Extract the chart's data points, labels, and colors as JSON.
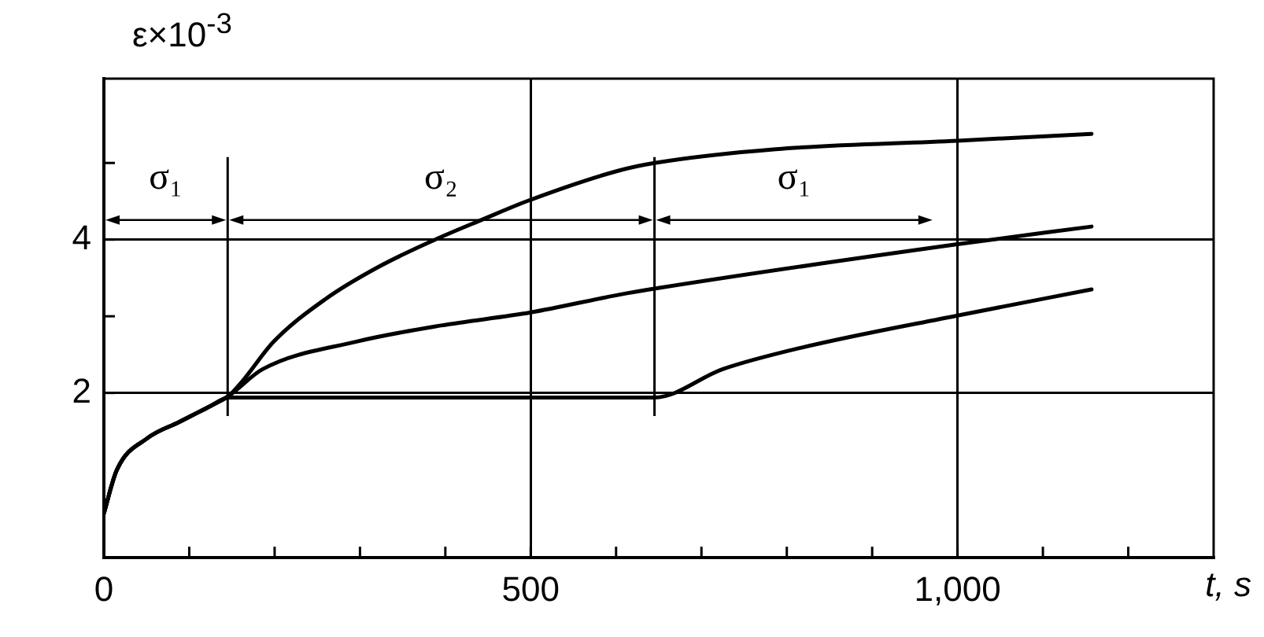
{
  "chart_data": {
    "type": "line",
    "ylabel": "ε×10$^{-3}$",
    "xlabel": "t, s",
    "xlim": [
      0,
      1300
    ],
    "ylim": [
      -0.15,
      6.1
    ],
    "xticks": [
      0,
      {
        "value": 100,
        "label": null
      },
      {
        "value": 200,
        "label": null
      },
      {
        "value": 300,
        "label": null
      },
      {
        "value": 400,
        "label": null
      },
      500,
      {
        "value": 600,
        "label": null
      },
      {
        "value": 700,
        "label": null
      },
      {
        "value": 800,
        "label": null
      },
      {
        "value": 900,
        "label": null
      },
      {
        "value": 1000,
        "label": "1,000"
      },
      {
        "value": 1100,
        "label": null
      },
      {
        "value": 1200,
        "label": null
      }
    ],
    "yticks": [
      2,
      {
        "value": 3,
        "label": null
      },
      4,
      {
        "value": 5,
        "label": null
      }
    ],
    "grid": true,
    "marker": "none",
    "line_style": "solid",
    "series": [
      {
        "color": "#000000",
        "x": [
          0,
          15,
          51,
          88,
          125,
          146,
          162,
          199,
          259,
          321,
          386,
          443,
          500,
          603,
          645,
          787,
          1000,
          1157
        ],
        "values": [
          0.43,
          0.99,
          1.41,
          1.62,
          1.83,
          1.96,
          2.15,
          2.67,
          3.22,
          3.64,
          3.99,
          4.26,
          4.52,
          4.9,
          5.0,
          5.18,
          5.29,
          5.38
        ]
      },
      {
        "color": "#000000",
        "x": [
          0,
          15,
          51,
          88,
          125,
          146,
          186,
          296,
          395,
          500,
          603,
          645,
          1000,
          1157
        ],
        "values": [
          0.43,
          0.99,
          1.41,
          1.62,
          1.83,
          1.96,
          2.31,
          2.67,
          2.88,
          3.05,
          3.28,
          3.36,
          3.94,
          4.17
        ]
      },
      {
        "color": "#000000",
        "x": [
          0,
          15,
          51,
          88,
          125,
          146,
          645,
          725,
          817,
          1000,
          1157
        ],
        "values": [
          0.43,
          0.99,
          1.41,
          1.62,
          1.83,
          1.94,
          1.94,
          2.31,
          2.59,
          3.01,
          3.35
        ]
      }
    ],
    "ref_lines": [
      {
        "axis": "x",
        "value": 145
      },
      {
        "axis": "x",
        "value": 645
      }
    ],
    "annotations": [
      "σ₁",
      "σ₂",
      "σ₁"
    ]
  }
}
